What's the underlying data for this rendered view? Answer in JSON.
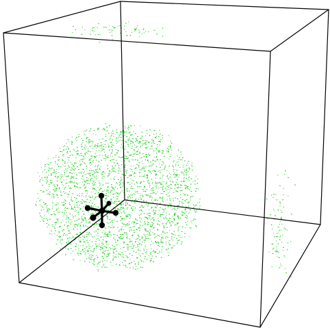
{
  "scene": {
    "background_color": "#ffffff",
    "box_edge_color": "#000000",
    "particle_color": "#00cc00",
    "molecule_color": "#000000",
    "molecule_icon": "molecule-icon",
    "particle_count_main_cluster": 2600,
    "particle_count_top_cluster": 70,
    "particle_count_right_cluster": 90
  }
}
